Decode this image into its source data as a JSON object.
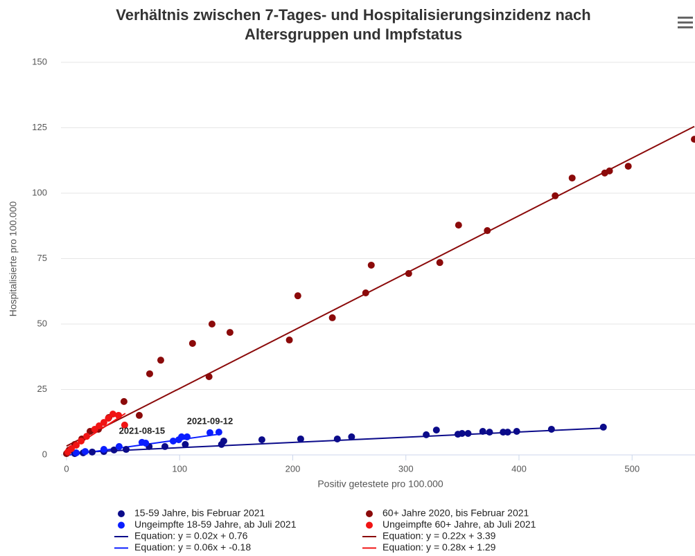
{
  "chart_data": {
    "type": "scatter",
    "title": "Verhältnis zwischen 7-Tages- und Hospitalisierungsinzidenz nach Altersgruppen und Impfstatus",
    "x_label": "Positiv getestete pro 100.000",
    "y_label": "Hospitalisierte pro 100.000",
    "xlim": [
      0,
      555
    ],
    "ylim": [
      0,
      150
    ],
    "xticks": [
      0,
      100,
      200,
      300,
      400,
      500
    ],
    "yticks": [
      0,
      25,
      50,
      75,
      100,
      125,
      150
    ],
    "grid": true,
    "series": [
      {
        "name": "15-59 Jahre, bis Februar 2021",
        "type": "scatter",
        "color": "#0b0b8a",
        "x": [
          474.6,
          428.7,
          398,
          390,
          386,
          374,
          368,
          355,
          349.7,
          346,
          327,
          318,
          252,
          239.4,
          207,
          172.7,
          139,
          137,
          105,
          87,
          73,
          52.7,
          42,
          33,
          22.7,
          14.7,
          7.3
        ],
        "values": [
          10.6,
          9.8,
          9,
          8.7,
          8.7,
          8.7,
          9,
          8.2,
          8.2,
          7.9,
          9.5,
          7.7,
          6.9,
          6.1,
          6.1,
          5.8,
          5.3,
          4,
          4,
          3.2,
          3.2,
          2.1,
          1.9,
          1.3,
          1.1,
          0.8,
          0.5
        ]
      },
      {
        "name": "60+ Jahre 2020, bis Februar 2021",
        "type": "scatter",
        "color": "#8b0a0a",
        "x": [
          555,
          496.6,
          480,
          475.8,
          447,
          432,
          372,
          346.6,
          330,
          302.5,
          269.4,
          264.5,
          235,
          204.5,
          197,
          144.5,
          128.6,
          111.4,
          126,
          83.3,
          73.5,
          64.3,
          50.8,
          37.4,
          28.2,
          20.8,
          13.5,
          7.3,
          2.4,
          0
        ],
        "values": [
          120.6,
          110.3,
          108.5,
          107.7,
          105.8,
          99,
          85.7,
          87.8,
          73.5,
          69.3,
          72.5,
          61.9,
          52.4,
          60.8,
          43.9,
          46.8,
          50,
          42.6,
          29.9,
          36.2,
          31,
          15.1,
          20.4,
          14.3,
          9.8,
          9,
          6.1,
          4,
          1.9,
          0.5
        ]
      },
      {
        "name": "Ungeimpfte 18-59 Jahre, ab Juli 2021",
        "type": "scatter",
        "color": "#0a1eff",
        "x": [
          134.7,
          126.8,
          106.6,
          101.7,
          99.2,
          94.3,
          70,
          66.7,
          46.5,
          33,
          16.5,
          8.6
        ],
        "values": [
          8.7,
          8.5,
          6.9,
          6.9,
          5.8,
          5.3,
          4.5,
          4.8,
          3.2,
          2.1,
          1.3,
          0.8
        ]
      },
      {
        "name": "Ungeimpfte 60+ Jahre, ab Juli 2021",
        "type": "scatter",
        "color": "#f01414",
        "x": [
          51.4,
          46,
          41,
          37,
          33,
          28.8,
          25,
          17.8,
          12.9,
          8.6,
          4.3,
          1.2
        ],
        "values": [
          11.4,
          15.1,
          15.6,
          14,
          12.4,
          11.1,
          9.8,
          7.1,
          5.3,
          3.7,
          2.4,
          1.1
        ]
      },
      {
        "name": "Equation: y = 0.02x + 0.76",
        "type": "line",
        "color": "#0b0b8a",
        "x": [
          0,
          475
        ],
        "values": [
          0.76,
          10.26
        ]
      },
      {
        "name": "Equation: y = 0.22x + 3.39",
        "type": "line",
        "color": "#8b0a0a",
        "x": [
          0,
          555
        ],
        "values": [
          3.39,
          125.5
        ]
      },
      {
        "name": "Equation: y = 0.06x + -0.18",
        "type": "line",
        "color": "#0a1eff",
        "x": [
          0,
          135
        ],
        "values": [
          -0.18,
          7.92
        ]
      },
      {
        "name": "Equation: y = 0.28x + 1.29",
        "type": "line",
        "color": "#f01414",
        "x": [
          0,
          52
        ],
        "values": [
          1.29,
          15.85
        ]
      }
    ],
    "annotations": [
      {
        "text": "2021-08-15",
        "x": 66.7,
        "y": 4.8
      },
      {
        "text": "2021-09-12",
        "x": 126.8,
        "y": 8.5
      }
    ]
  }
}
